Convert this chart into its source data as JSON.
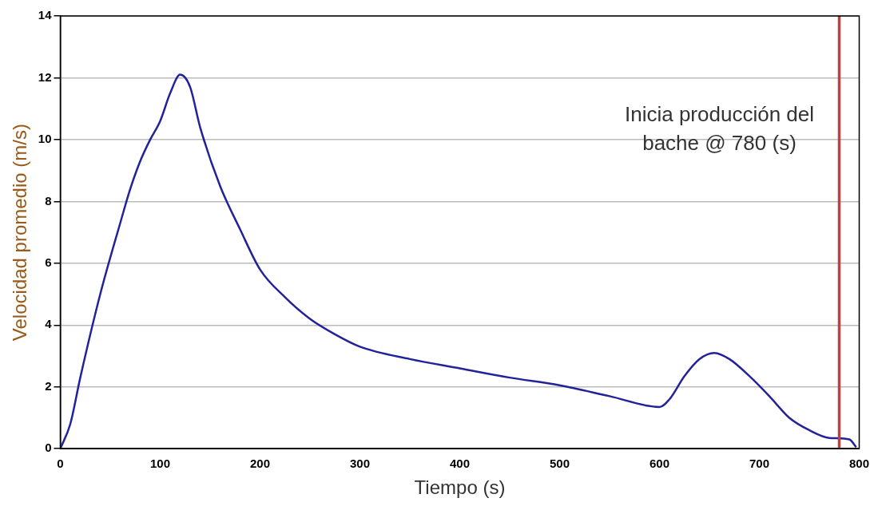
{
  "chart_data": {
    "type": "line",
    "xlabel": "Tiempo (s)",
    "ylabel": "Velocidad promedio (m/s)",
    "xlim": [
      0,
      800
    ],
    "ylim": [
      0,
      14
    ],
    "xticks": [
      0,
      100,
      200,
      300,
      400,
      500,
      600,
      700,
      800
    ],
    "yticks": [
      0,
      2,
      4,
      6,
      8,
      10,
      12,
      14
    ],
    "grid": "y",
    "series": [
      {
        "color": "#22229a",
        "x": [
          0,
          10,
          20,
          40,
          60,
          70,
          80,
          90,
          100,
          110,
          120,
          130,
          140,
          160,
          180,
          200,
          225,
          250,
          275,
          300,
          350,
          400,
          450,
          500,
          550,
          600,
          610,
          625,
          640,
          655,
          670,
          690,
          710,
          730,
          750,
          770,
          790,
          797
        ],
        "values": [
          0,
          0.8,
          2.3,
          5.0,
          7.3,
          8.4,
          9.3,
          10.0,
          10.6,
          11.5,
          12.1,
          11.7,
          10.4,
          8.5,
          7.1,
          5.8,
          4.9,
          4.2,
          3.7,
          3.3,
          2.9,
          2.6,
          2.3,
          2.05,
          1.7,
          1.35,
          1.6,
          2.35,
          2.9,
          3.1,
          2.9,
          2.35,
          1.7,
          1.0,
          0.6,
          0.35,
          0.3,
          0.05
        ]
      }
    ],
    "ref_lines": [
      {
        "axis": "x",
        "value": 780,
        "label": "Inicia producción del bache @ 780 (s)",
        "color": "#c83c3c"
      }
    ]
  }
}
